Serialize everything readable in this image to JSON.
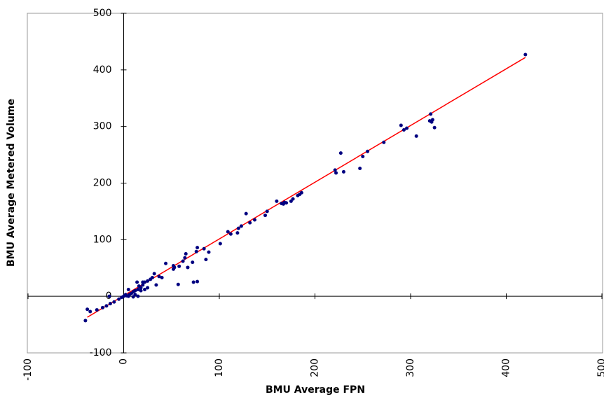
{
  "chart_data": {
    "type": "scatter",
    "xlabel": "BMU Average FPN",
    "ylabel": "BMU Average Metered Volume",
    "xlim": [
      -100,
      500
    ],
    "ylim": [
      -100,
      500
    ],
    "xticks": [
      -100,
      0,
      100,
      200,
      300,
      400,
      500
    ],
    "yticks": [
      -100,
      0,
      100,
      200,
      300,
      400,
      500
    ],
    "color": "#000080",
    "x": [
      420,
      321,
      320,
      322,
      323,
      325,
      306,
      296,
      293,
      290,
      272,
      255,
      250,
      247,
      230,
      227,
      221,
      222,
      186,
      184,
      182,
      177,
      175,
      170,
      167,
      168,
      165,
      160,
      150,
      148,
      137,
      132,
      128,
      123,
      120,
      119,
      112,
      109,
      101,
      89,
      86,
      84,
      77,
      76,
      72,
      67,
      65,
      64,
      62,
      58,
      57,
      53,
      52,
      52,
      77,
      73,
      44,
      40,
      37,
      32,
      34,
      30,
      28,
      25,
      22,
      20,
      18,
      16,
      15,
      14,
      12,
      10,
      8,
      6,
      5,
      3,
      2,
      0,
      -2,
      -5,
      -10,
      -14,
      -18,
      -22,
      -28,
      -35,
      -38,
      -40,
      -15,
      20,
      25,
      10,
      15,
      5,
      12,
      18,
      22
    ],
    "values": [
      427,
      322,
      310,
      308,
      312,
      298,
      283,
      297,
      294,
      302,
      272,
      256,
      247,
      226,
      220,
      253,
      223,
      218,
      183,
      180,
      178,
      172,
      168,
      165,
      163,
      166,
      164,
      168,
      150,
      143,
      135,
      130,
      146,
      124,
      120,
      112,
      110,
      114,
      93,
      78,
      65,
      84,
      86,
      79,
      60,
      51,
      75,
      68,
      62,
      53,
      21,
      51,
      48,
      54,
      26,
      25,
      58,
      33,
      35,
      40,
      20,
      33,
      30,
      27,
      25,
      20,
      15,
      18,
      12,
      25,
      10,
      8,
      5,
      3,
      12,
      1,
      3,
      0,
      -2,
      -5,
      -10,
      -13,
      -17,
      -20,
      -24,
      -27,
      -23,
      -43,
      0,
      25,
      15,
      -1,
      0,
      0,
      3,
      10,
      12
    ],
    "trendline": {
      "x": [
        -38,
        420
      ],
      "y": [
        -37,
        422
      ],
      "color": "#ff0000"
    }
  }
}
